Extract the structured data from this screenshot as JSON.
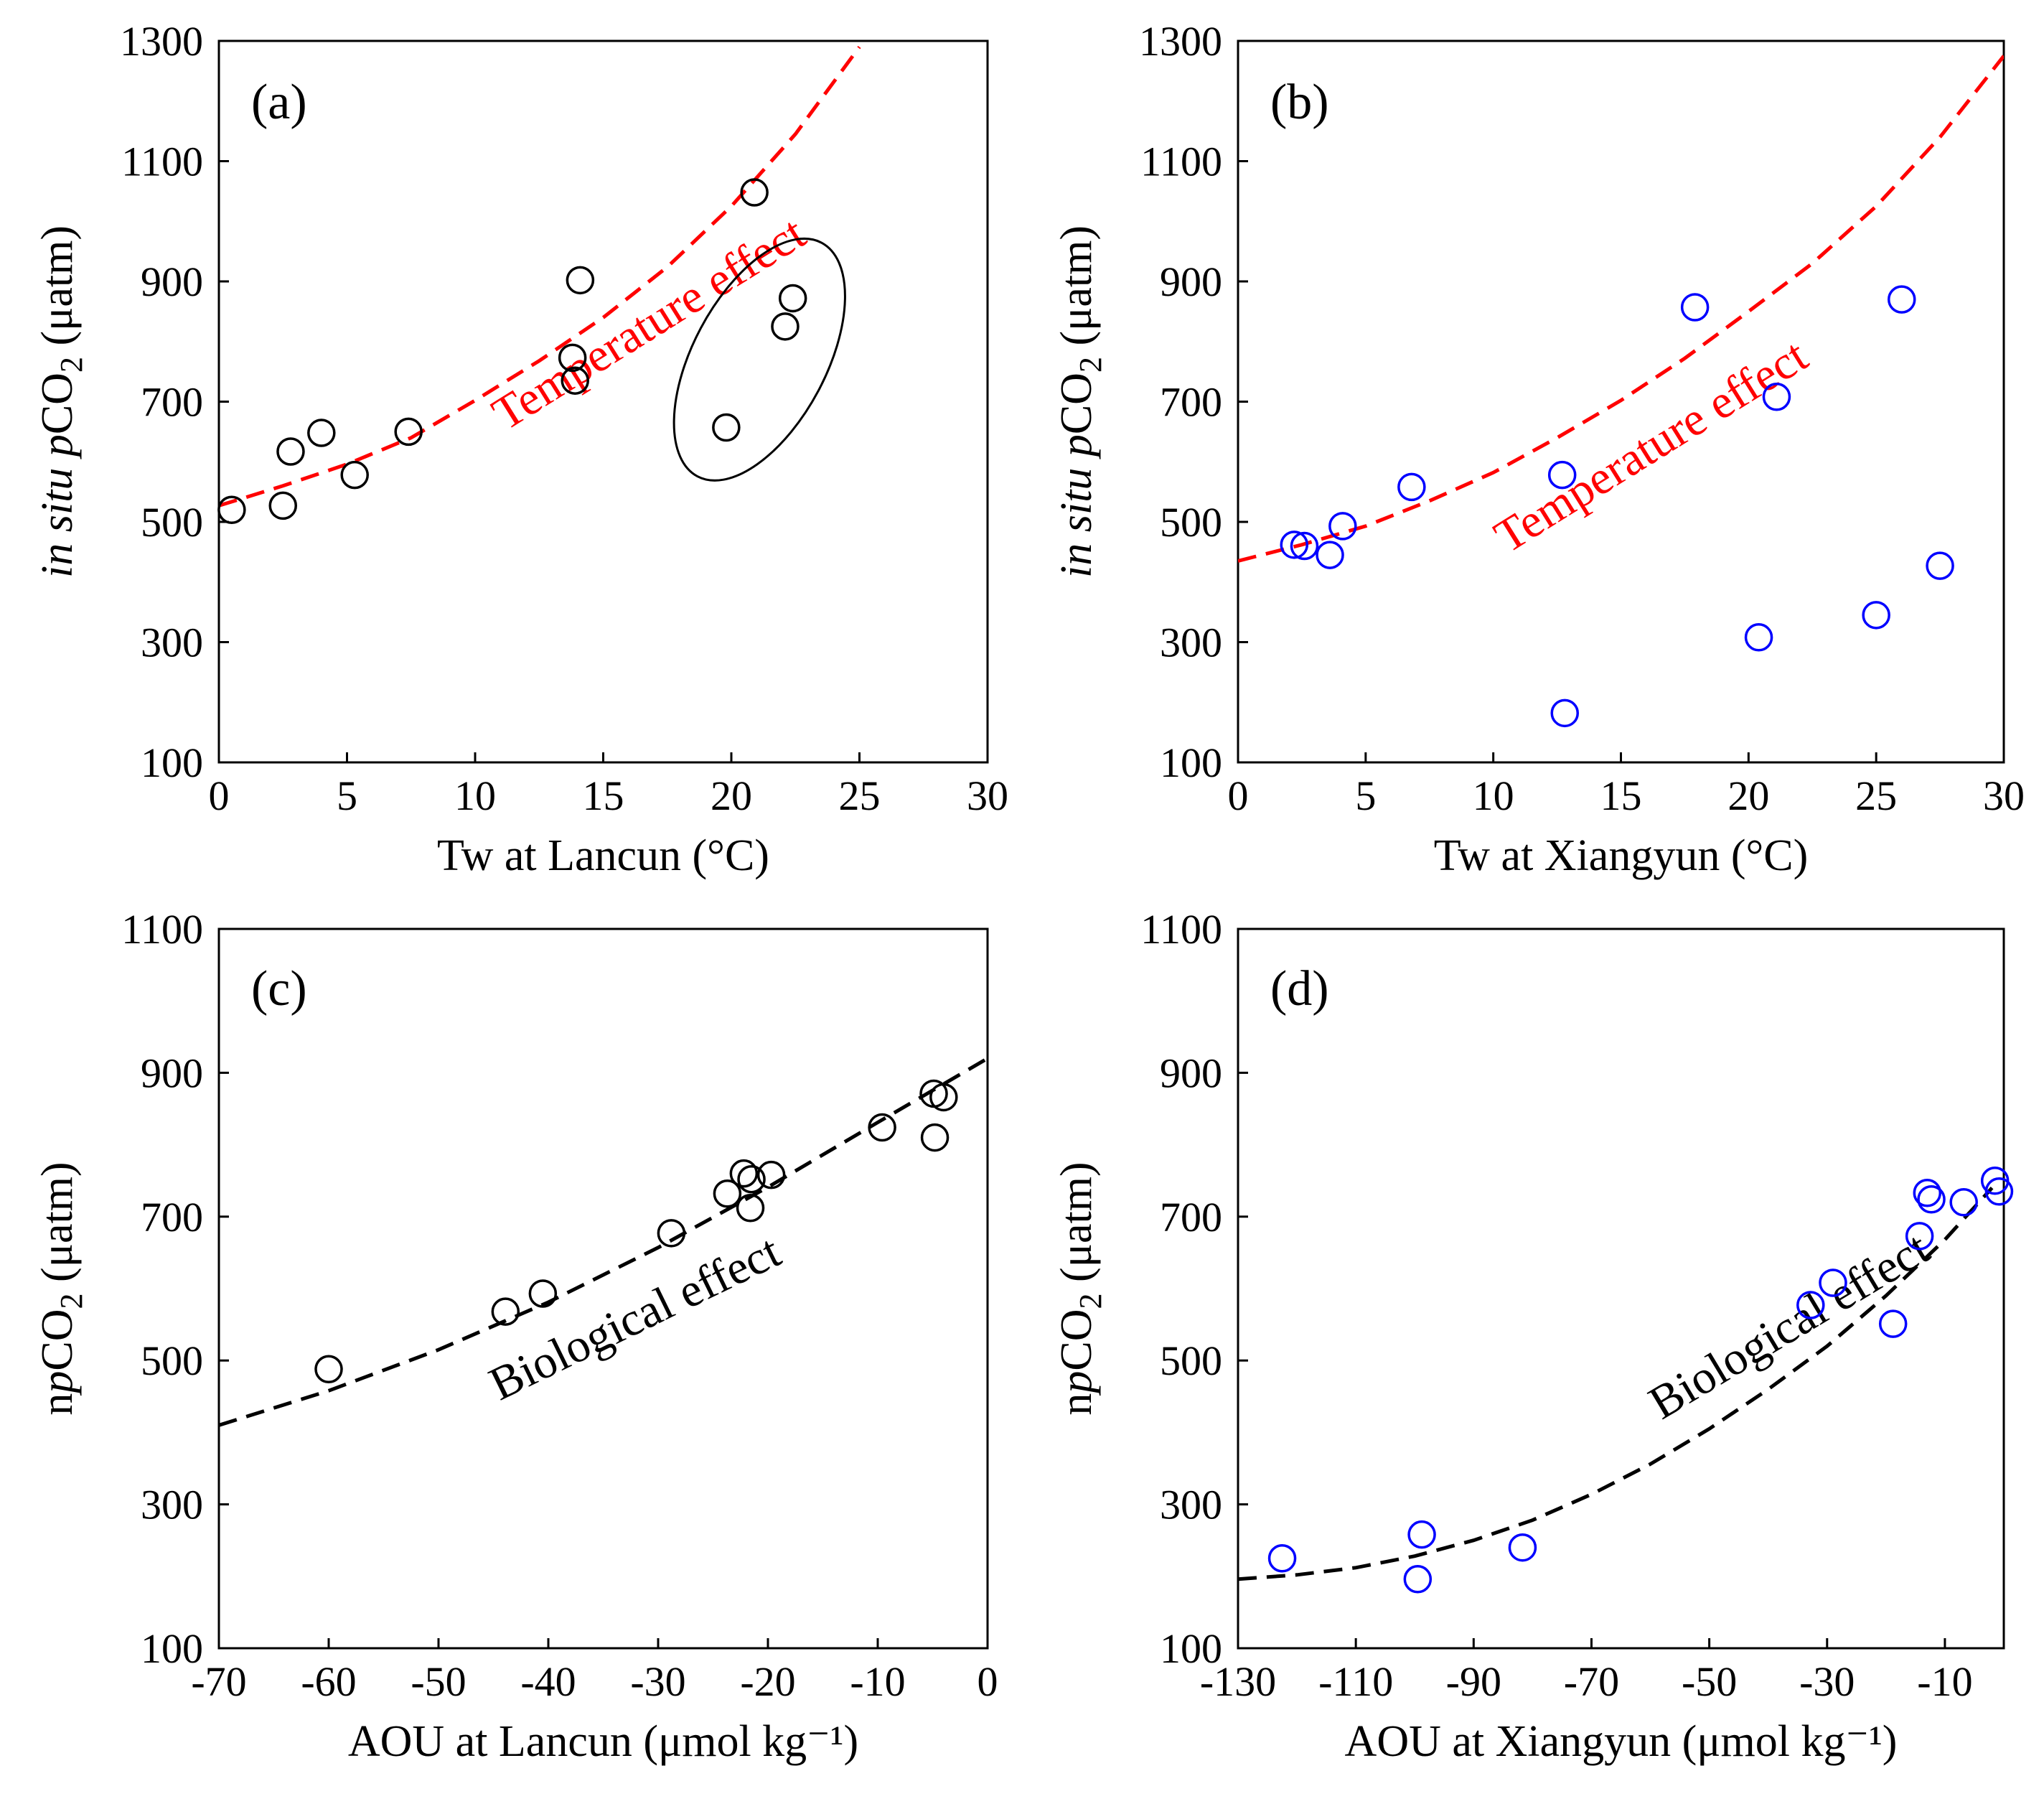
{
  "colors": {
    "black": "#000000",
    "blue": "#0000ff",
    "red": "#ff0000"
  },
  "chart_data": [
    {
      "panel": "(a)",
      "type": "scatter",
      "xlabel": "Tw at Lancun (°C)",
      "ylabel": {
        "pre": "in situ ",
        "mid": "p",
        "main": "CO",
        "sub": "2",
        "post": " (μatm)"
      },
      "xlim": [
        0,
        30
      ],
      "ylim": [
        100,
        1300
      ],
      "xticks": [
        0,
        5,
        10,
        15,
        20,
        25,
        30
      ],
      "yticks": [
        100,
        300,
        500,
        700,
        900,
        1100,
        1300
      ],
      "marker_color": "#000000",
      "points": [
        [
          0.5,
          520
        ],
        [
          2.5,
          527
        ],
        [
          2.8,
          617
        ],
        [
          4,
          648
        ],
        [
          5.3,
          578
        ],
        [
          7.4,
          650
        ],
        [
          13.8,
          773
        ],
        [
          13.9,
          735
        ],
        [
          14.1,
          902
        ],
        [
          19.8,
          657
        ],
        [
          20.9,
          1048
        ],
        [
          22.1,
          825
        ],
        [
          22.4,
          872
        ]
      ],
      "curve": {
        "label": "Temperature effect",
        "color": "#ff0000",
        "x": [
          0,
          2.5,
          5,
          7.5,
          10,
          12.5,
          15,
          17.5,
          20,
          22.5,
          25
        ],
        "y": [
          527,
          560,
          596,
          640,
          702,
          768,
          840,
          924,
          1025,
          1145,
          1290
        ]
      },
      "ellipse": {
        "cx": 21.1,
        "cy": 770,
        "rx": 2.6,
        "ry": 220,
        "angle": 28
      }
    },
    {
      "panel": "(b)",
      "type": "scatter",
      "xlabel": "Tw at Xiangyun (°C)",
      "ylabel": {
        "pre": "in situ ",
        "mid": "p",
        "main": "CO",
        "sub": "2",
        "post": " (μatm)"
      },
      "xlim": [
        0,
        30
      ],
      "ylim": [
        100,
        1300
      ],
      "xticks": [
        0,
        5,
        10,
        15,
        20,
        25,
        30
      ],
      "yticks": [
        100,
        300,
        500,
        700,
        900,
        1100,
        1300
      ],
      "marker_color": "#0000ff",
      "points": [
        [
          2.2,
          462
        ],
        [
          2.6,
          460
        ],
        [
          3.6,
          445
        ],
        [
          4.1,
          493
        ],
        [
          6.8,
          558
        ],
        [
          12.7,
          578
        ],
        [
          12.8,
          182
        ],
        [
          17.9,
          857
        ],
        [
          20.4,
          308
        ],
        [
          21.1,
          708
        ],
        [
          25,
          345
        ],
        [
          26,
          870
        ],
        [
          27.5,
          427
        ]
      ],
      "curve": {
        "label": "Temperature effect",
        "color": "#ff0000",
        "x": [
          0,
          2.5,
          5,
          7.5,
          10,
          12.5,
          15,
          17.5,
          20,
          22.5,
          25,
          27.5,
          30
        ],
        "y": [
          435,
          462,
          493,
          535,
          582,
          640,
          702,
          772,
          850,
          930,
          1025,
          1140,
          1275
        ]
      }
    },
    {
      "panel": "(c)",
      "type": "scatter",
      "xlabel": "AOU at Lancun (μmol kg⁻¹)",
      "ylabel": {
        "pre": "n",
        "mid": "p",
        "main": "CO",
        "sub": "2",
        "post": " (μatm)"
      },
      "xlim": [
        -70,
        0
      ],
      "ylim": [
        100,
        1100
      ],
      "xticks": [
        -70,
        -60,
        -50,
        -40,
        -30,
        -20,
        -10,
        0
      ],
      "yticks": [
        100,
        300,
        500,
        700,
        900,
        1100
      ],
      "marker_color": "#000000",
      "points": [
        [
          -60,
          488
        ],
        [
          -43.9,
          568
        ],
        [
          -40.5,
          593
        ],
        [
          -28.8,
          677
        ],
        [
          -23.7,
          732
        ],
        [
          -22.2,
          760
        ],
        [
          -21.5,
          752
        ],
        [
          -21.6,
          712
        ],
        [
          -19.7,
          758
        ],
        [
          -9.6,
          824
        ],
        [
          -4.9,
          871
        ],
        [
          -4,
          866
        ],
        [
          -4.8,
          810
        ]
      ],
      "curve": {
        "label": "Biological effect",
        "color": "#000000",
        "x": [
          -70,
          -60,
          -50,
          -40,
          -30,
          -20,
          -10,
          0
        ],
        "y": [
          410,
          458,
          515,
          581,
          657,
          741,
          831,
          920
        ]
      }
    },
    {
      "panel": "(d)",
      "type": "scatter",
      "xlabel": "AOU at Xiangyun (μmol kg⁻¹)",
      "ylabel": {
        "pre": "n",
        "mid": "p",
        "main": "CO",
        "sub": "2",
        "post": " (μatm)"
      },
      "xlim": [
        -130,
        0
      ],
      "ylim": [
        100,
        1100
      ],
      "xticks": [
        -130,
        -110,
        -90,
        -70,
        -50,
        -30,
        -10
      ],
      "yticks": [
        100,
        300,
        500,
        700,
        900,
        1100
      ],
      "marker_color": "#0000ff",
      "points": [
        [
          -122.5,
          225
        ],
        [
          -98.8,
          258
        ],
        [
          -99.5,
          196
        ],
        [
          -81.7,
          240
        ],
        [
          -32.8,
          577
        ],
        [
          -29,
          608
        ],
        [
          -18.8,
          551
        ],
        [
          -14.3,
          673
        ],
        [
          -13,
          733
        ],
        [
          -12.3,
          724
        ],
        [
          -6.8,
          720
        ],
        [
          -1.5,
          750
        ],
        [
          -0.8,
          735
        ]
      ],
      "curve": {
        "label": "Biological effect",
        "color": "#000000",
        "x": [
          -130,
          -120,
          -110,
          -100,
          -90,
          -80,
          -70,
          -60,
          -50,
          -40,
          -30,
          -20,
          -10,
          -2
        ],
        "y": [
          196,
          202,
          212,
          228,
          250,
          278,
          314,
          356,
          405,
          460,
          520,
          590,
          668,
          740
        ]
      }
    }
  ]
}
